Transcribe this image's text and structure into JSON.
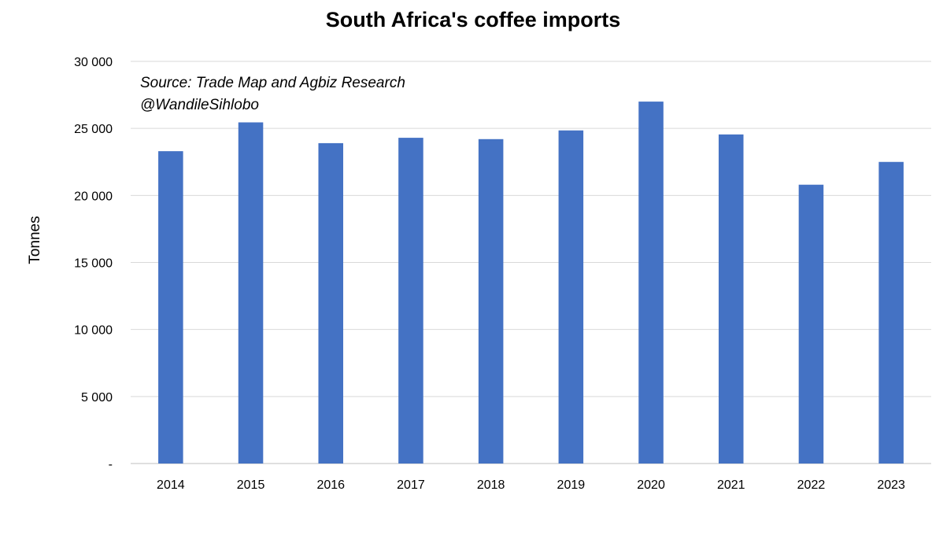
{
  "chart_data": {
    "type": "bar",
    "title": "South Africa's coffee imports",
    "xlabel": "",
    "ylabel": "Tonnes",
    "categories": [
      "2014",
      "2015",
      "2016",
      "2017",
      "2018",
      "2019",
      "2020",
      "2021",
      "2022",
      "2023"
    ],
    "series": [
      {
        "name": "Coffee imports",
        "values": [
          23300,
          25450,
          23900,
          24300,
          24200,
          24850,
          27000,
          24550,
          20800,
          22500
        ]
      }
    ],
    "ylim": [
      0,
      30000
    ],
    "yticks": [
      0,
      5000,
      10000,
      15000,
      20000,
      25000,
      30000
    ],
    "ytick_labels": [
      "-",
      "5 000",
      "10 000",
      "15 000",
      "20 000",
      "25 000",
      "30 000"
    ],
    "grid": true,
    "legend": "none",
    "annotations": [
      "Source: Trade Map and Agbiz Research",
      "@WandileSihlobo"
    ],
    "bar_color": "#4472c4"
  }
}
